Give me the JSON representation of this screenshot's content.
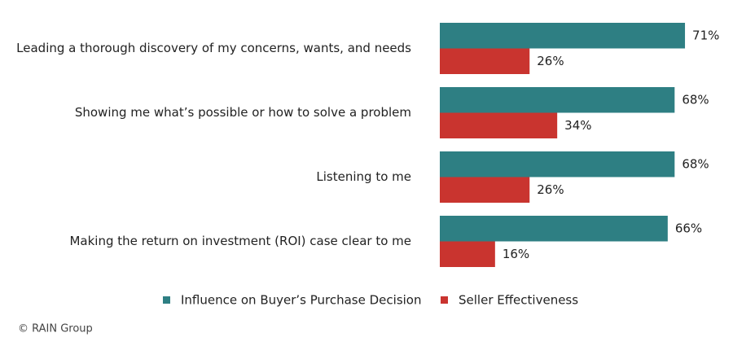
{
  "chart_data": {
    "type": "bar",
    "orientation": "horizontal",
    "categories": [
      "Leading a thorough discovery of my concerns, wants, and needs",
      "Showing me what’s possible or how to solve a problem",
      "Listening to me",
      "Making the return on investment (ROI) case clear to me"
    ],
    "series": [
      {
        "name": "Influence on Buyer’s Purchase Decision",
        "color": "#2e7f83",
        "values": [
          71,
          68,
          68,
          66
        ],
        "value_labels": [
          "71%",
          "68%",
          "68%",
          "66%"
        ]
      },
      {
        "name": "Seller Effectiveness",
        "color": "#c9342f",
        "values": [
          26,
          34,
          26,
          16
        ],
        "value_labels": [
          "26%",
          "34%",
          "26%",
          "16%"
        ]
      }
    ],
    "legend": "bottom",
    "source": "© RAIN Group"
  }
}
